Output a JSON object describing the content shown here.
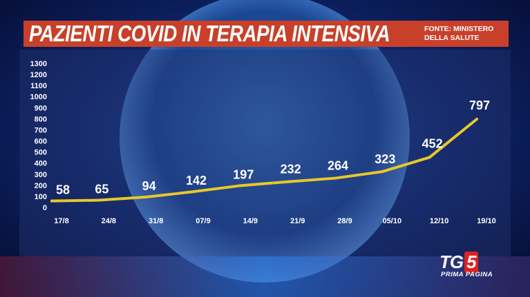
{
  "title": "PAZIENTI COVID IN TERAPIA INTENSIVA",
  "source": "FONTE: MINISTERO DELLA SALUTE",
  "logo": {
    "main": "TG",
    "number": "5",
    "sub": "PRIMA PAGINA"
  },
  "colors": {
    "line": "#e8c82a",
    "title_bg": "#c8402a",
    "panel_bg": "#24346e"
  },
  "chart_data": {
    "type": "line",
    "title": "PAZIENTI COVID IN TERAPIA INTENSIVA",
    "xlabel": "",
    "ylabel": "",
    "ylim": [
      0,
      1300
    ],
    "yticks": [
      0,
      100,
      200,
      300,
      400,
      500,
      600,
      700,
      800,
      900,
      1000,
      1100,
      1200,
      1300
    ],
    "categories": [
      "17/8",
      "24/8",
      "31/8",
      "07/9",
      "14/9",
      "21/9",
      "28/9",
      "05/10",
      "12/10",
      "19/10"
    ],
    "series": [
      {
        "values": [
          58,
          65,
          94,
          142,
          197,
          232,
          264,
          323,
          452,
          797
        ]
      }
    ],
    "data_labels": [
      "58",
      "65",
      "94",
      "142",
      "197",
      "232",
      "264",
      "323",
      "452",
      "797"
    ],
    "grid": false,
    "legend": "none"
  }
}
